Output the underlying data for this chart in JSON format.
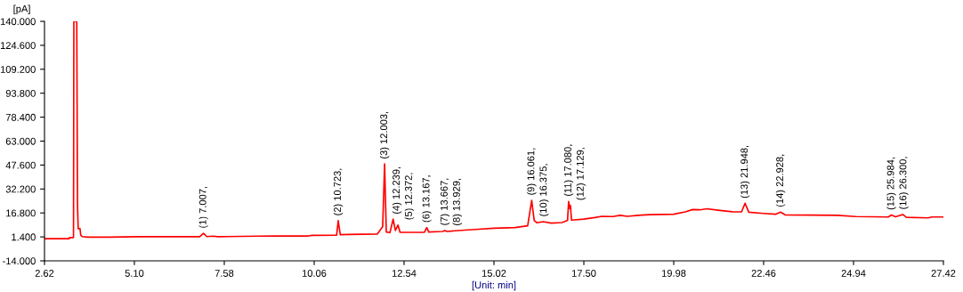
{
  "chart_data": {
    "type": "line",
    "ylabel": "[pA]",
    "xlabel": "[Unit: min]",
    "xlim": [
      2.62,
      27.42
    ],
    "ylim": [
      -14,
      140
    ],
    "xticks": [
      2.62,
      {
        "value": 5.1,
        "label": "5.10"
      },
      7.58,
      10.06,
      12.54,
      15.02,
      {
        "value": 17.5,
        "label": "17.50"
      },
      19.98,
      22.46,
      24.94,
      27.42
    ],
    "yticks": [
      {
        "value": 140,
        "label": "140.000"
      },
      {
        "value": 124.6,
        "label": "124.600"
      },
      {
        "value": 109.2,
        "label": "109.200"
      },
      {
        "value": 93.8,
        "label": "93.800"
      },
      {
        "value": 78.4,
        "label": "78.400"
      },
      {
        "value": 63,
        "label": "63.000"
      },
      {
        "value": 47.6,
        "label": "47.600"
      },
      {
        "value": 32.2,
        "label": "32.200"
      },
      {
        "value": 16.8,
        "label": "16.800"
      },
      {
        "value": 1.4,
        "label": "1.400"
      },
      {
        "value": -14,
        "label": "-14.000"
      }
    ],
    "grid": false,
    "legend": false,
    "marker": "none",
    "line_style": "solid",
    "series": [
      {
        "color": "#ff0000",
        "x": [
          2.62,
          3.3,
          3.31,
          3.42,
          3.43,
          3.51,
          3.53,
          3.55,
          3.6,
          3.62,
          3.66,
          3.8,
          4.4,
          5.2,
          6.9,
          7.007,
          7.1,
          7.28,
          7.4,
          8.5,
          9.0,
          9.9,
          10.0,
          10.68,
          10.723,
          10.78,
          11.0,
          11.8,
          11.95,
          12.003,
          12.05,
          12.15,
          12.239,
          12.3,
          12.372,
          12.43,
          13.1,
          13.167,
          13.22,
          13.6,
          13.667,
          13.72,
          13.929,
          14.5,
          15.02,
          15.6,
          15.95,
          16.061,
          16.13,
          16.2,
          16.375,
          16.6,
          16.9,
          17.05,
          17.08,
          17.11,
          17.129,
          17.16,
          17.5,
          17.8,
          18.0,
          18.3,
          18.5,
          18.7,
          19.0,
          19.3,
          19.98,
          20.3,
          20.5,
          20.7,
          20.9,
          21.2,
          21.6,
          21.85,
          21.948,
          22.05,
          22.46,
          22.8,
          22.928,
          23.05,
          23.8,
          24.5,
          25.0,
          25.9,
          25.984,
          26.1,
          26.3,
          26.4,
          27.0,
          27.1,
          27.42
        ],
        "values": [
          0.2,
          0.2,
          1.0,
          1.0,
          140,
          140,
          22.6,
          6.7,
          6.7,
          2.5,
          1.6,
          1.2,
          1.2,
          1.5,
          1.5,
          3.7,
          1.6,
          1.9,
          1.5,
          1.9,
          2.0,
          2.0,
          2.4,
          2.5,
          11.8,
          2.8,
          3.0,
          3.2,
          8.0,
          48.3,
          4.5,
          4.2,
          12.8,
          5.5,
          9.0,
          4.3,
          4.4,
          7.4,
          4.5,
          4.9,
          5.5,
          4.9,
          5.3,
          6.2,
          7.0,
          7.4,
          8.5,
          24.9,
          12,
          10.5,
          11.2,
          10.3,
          10.6,
          12,
          24.2,
          19.5,
          21.7,
          12.2,
          12.8,
          13.8,
          14.6,
          14.5,
          15.3,
          14.6,
          15.3,
          15.7,
          16.0,
          17.5,
          19.0,
          18.8,
          19.5,
          18.6,
          17.6,
          17.5,
          23.0,
          17.3,
          16.5,
          16.0,
          17.3,
          15.6,
          15.4,
          15.3,
          14.5,
          14.2,
          15.5,
          14.3,
          15.8,
          14.0,
          13.6,
          14.2,
          14.2
        ]
      }
    ],
    "annotations": [
      {
        "text": "(1) 7.007,",
        "x": 7.007,
        "y": 3.7
      },
      {
        "text": "(2) 10.723,",
        "x": 10.723,
        "y": 11.8
      },
      {
        "text": "(3) 12.003,",
        "x": 12.003,
        "y": 48.3
      },
      {
        "text": "(4) 12.239,",
        "x": 12.239,
        "y": 12.8
      },
      {
        "text": "(5) 12.372,",
        "x": 12.372,
        "y": 9.0
      },
      {
        "text": "(6) 13.167,",
        "x": 13.167,
        "y": 7.4
      },
      {
        "text": "(7) 13.667,",
        "x": 13.667,
        "y": 5.5
      },
      {
        "text": "(8) 13.929,",
        "x": 13.929,
        "y": 5.3
      },
      {
        "text": "(9) 16.061,",
        "x": 16.061,
        "y": 24.9
      },
      {
        "text": "(10) 16.375,",
        "x": 16.375,
        "y": 11.2
      },
      {
        "text": "(11) 17.080,",
        "x": 17.08,
        "y": 24.2
      },
      {
        "text": "(12) 17.129,",
        "x": 17.129,
        "y": 21.7
      },
      {
        "text": "(13) 21.948,",
        "x": 21.948,
        "y": 23.0
      },
      {
        "text": "(14) 22.928,",
        "x": 22.928,
        "y": 17.3
      },
      {
        "text": "(15) 25.984,",
        "x": 25.984,
        "y": 15.5
      },
      {
        "text": "(16) 26.300,",
        "x": 26.3,
        "y": 15.8
      }
    ]
  }
}
